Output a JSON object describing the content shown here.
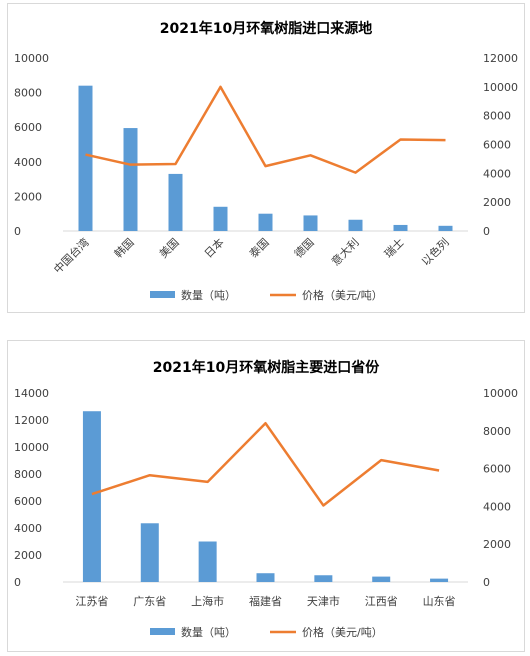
{
  "colors": {
    "bar": "#5b9bd5",
    "line": "#ed7d31",
    "grid": "#d9d9d9",
    "text": "#404040"
  },
  "chart_data": [
    {
      "type": "bar",
      "title": "2021年10月环氧树脂进口来源地",
      "categories": [
        "中国台湾",
        "韩国",
        "美国",
        "日本",
        "泰国",
        "德国",
        "意大利",
        "瑞士",
        "以色列"
      ],
      "series": [
        {
          "name": "数量（吨）",
          "type": "bar",
          "axis": "left",
          "values": [
            8400,
            5950,
            3300,
            1400,
            1000,
            900,
            650,
            350,
            300
          ]
        },
        {
          "name": "价格（美元/吨）",
          "type": "line",
          "axis": "right",
          "values": [
            5300,
            4600,
            4650,
            10000,
            4500,
            5250,
            4050,
            6350,
            6300
          ]
        }
      ],
      "ylim_left": [
        0,
        10000
      ],
      "yticks_left": [
        "0",
        "2000",
        "4000",
        "6000",
        "8000",
        "10000"
      ],
      "ylim_right": [
        0,
        12000
      ],
      "yticks_right": [
        "0",
        "2000",
        "4000",
        "6000",
        "8000",
        "10000",
        "12000"
      ],
      "grid": false,
      "legend": "bottom",
      "xlabel_rotation": "rotated"
    },
    {
      "type": "bar",
      "title": "2021年10月环氧树脂主要进口省份",
      "categories": [
        "江苏省",
        "广东省",
        "上海市",
        "福建省",
        "天津市",
        "江西省",
        "山东省"
      ],
      "series": [
        {
          "name": "数量（吨）",
          "type": "bar",
          "axis": "left",
          "values": [
            12650,
            4350,
            3000,
            650,
            500,
            400,
            250
          ]
        },
        {
          "name": "价格（美元/吨）",
          "type": "line",
          "axis": "right",
          "values": [
            4650,
            5650,
            5300,
            8400,
            4050,
            6450,
            5900
          ]
        }
      ],
      "ylim_left": [
        0,
        14000
      ],
      "yticks_left": [
        "0",
        "2000",
        "4000",
        "6000",
        "8000",
        "10000",
        "12000",
        "14000"
      ],
      "ylim_right": [
        0,
        10000
      ],
      "yticks_right": [
        "0",
        "2000",
        "4000",
        "6000",
        "8000",
        "10000"
      ],
      "grid": false,
      "legend": "bottom",
      "xlabel_rotation": "horizontal"
    }
  ]
}
